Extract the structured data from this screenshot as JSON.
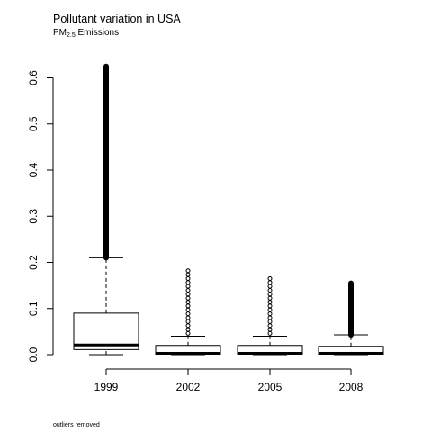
{
  "title": "Pollutant variation in USA",
  "subtitle": {
    "text": "PM",
    "subscript": "2.5",
    "suffix": " Emissions"
  },
  "footnote": "outliers removed",
  "chart_data": {
    "type": "boxplot",
    "categories": [
      "1999",
      "2002",
      "2005",
      "2008"
    ],
    "ylim": [
      0,
      0.62
    ],
    "yticks": [
      0.0,
      0.1,
      0.2,
      0.3,
      0.4,
      0.5,
      0.6
    ],
    "ytick_labels": [
      "0.0",
      "0.1",
      "0.2",
      "0.3",
      "0.4",
      "0.5",
      "0.6"
    ],
    "grid": false,
    "boxes": [
      {
        "category": "1999",
        "min": 0.0,
        "q1": 0.011,
        "median": 0.021,
        "q3": 0.09,
        "whisker_high": 0.21,
        "outliers_range": [
          0.21,
          0.625
        ],
        "outlier_style": "dense"
      },
      {
        "category": "2002",
        "min": 0.0,
        "q1": 0.001,
        "median": 0.003,
        "q3": 0.02,
        "whisker_high": 0.04,
        "outliers_range": [
          0.046,
          0.19
        ],
        "outlier_style": "sparse"
      },
      {
        "category": "2005",
        "min": 0.0,
        "q1": 0.001,
        "median": 0.003,
        "q3": 0.02,
        "whisker_high": 0.04,
        "outliers_range": [
          0.046,
          0.17
        ],
        "outlier_style": "sparse"
      },
      {
        "category": "2008",
        "min": 0.0,
        "q1": 0.001,
        "median": 0.003,
        "q3": 0.018,
        "whisker_high": 0.043,
        "outliers_range": [
          0.043,
          0.155
        ],
        "outlier_style": "dense"
      }
    ]
  }
}
